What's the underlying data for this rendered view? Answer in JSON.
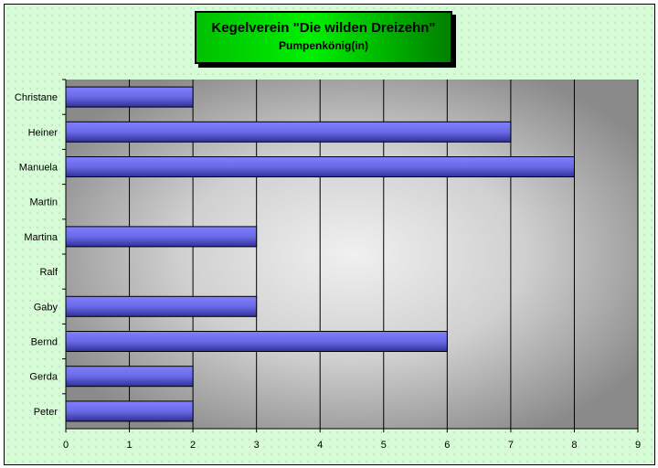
{
  "chart_data": {
    "type": "bar",
    "orientation": "horizontal",
    "title": "Kegelverein \"Die wilden Dreizehn\"",
    "subtitle": "Pumpenkönig(in)",
    "categories": [
      "Christane",
      "Heiner",
      "Manuela",
      "Martin",
      "Martina",
      "Ralf",
      "Gaby",
      "Bernd",
      "Gerda",
      "Peter"
    ],
    "values": [
      2,
      7,
      8,
      0,
      3,
      0,
      3,
      6,
      2,
      2
    ],
    "xlim": [
      0,
      9
    ],
    "xticks": [
      "0",
      "1",
      "2",
      "3",
      "4",
      "5",
      "6",
      "7",
      "8",
      "9"
    ],
    "grid": true,
    "colors": {
      "bar": "#6060e0",
      "background": "#d6fbd6",
      "title_box": "#00c000",
      "plot": "#a0a0a0"
    }
  }
}
